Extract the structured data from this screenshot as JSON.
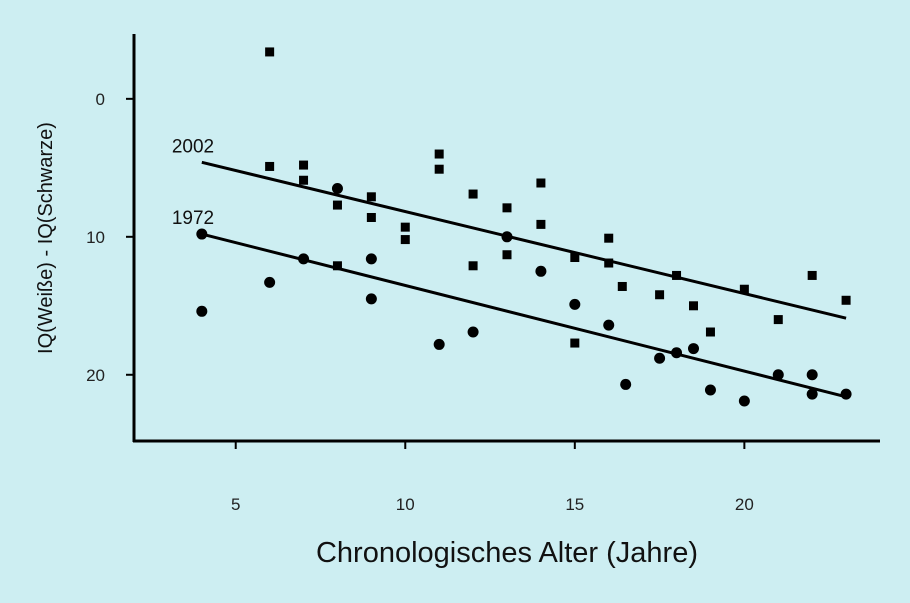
{
  "chart_data": {
    "type": "scatter",
    "background": "#cdeef2",
    "xlabel": "Chronologisches Alter (Jahre)",
    "ylabel": "IQ(Weiße) - IQ(Schwarze)",
    "xlim": [
      2,
      24
    ],
    "ylim": [
      -4.7,
      24.8
    ],
    "y_inverted": true,
    "x_ticks": [
      5,
      10,
      15,
      20
    ],
    "y_ticks": [
      0,
      10,
      20
    ],
    "grid": false,
    "series": [
      {
        "name": "2002",
        "marker": "square",
        "points": [
          [
            6,
            -3.4
          ],
          [
            6,
            4.9
          ],
          [
            7,
            4.8
          ],
          [
            7,
            5.9
          ],
          [
            8,
            7.7
          ],
          [
            8,
            12.1
          ],
          [
            9,
            7.1
          ],
          [
            9,
            8.6
          ],
          [
            10,
            9.3
          ],
          [
            10,
            10.2
          ],
          [
            11,
            4.0
          ],
          [
            11,
            5.1
          ],
          [
            12,
            6.9
          ],
          [
            12,
            12.1
          ],
          [
            13,
            7.9
          ],
          [
            13,
            11.3
          ],
          [
            14,
            6.1
          ],
          [
            14,
            9.1
          ],
          [
            15,
            11.5
          ],
          [
            15,
            17.7
          ],
          [
            16,
            10.1
          ],
          [
            16,
            11.9
          ],
          [
            16.4,
            13.6
          ],
          [
            17.5,
            14.2
          ],
          [
            18,
            12.8
          ],
          [
            18.5,
            15.0
          ],
          [
            19,
            16.9
          ],
          [
            20,
            13.8
          ],
          [
            21,
            16.0
          ],
          [
            22,
            12.8
          ],
          [
            23,
            14.6
          ]
        ],
        "trend": {
          "x": [
            4,
            23
          ],
          "y": [
            4.6,
            15.9
          ]
        }
      },
      {
        "name": "1972",
        "marker": "circle",
        "points": [
          [
            4,
            15.4
          ],
          [
            4,
            9.8
          ],
          [
            6,
            13.3
          ],
          [
            7,
            11.6
          ],
          [
            8,
            6.5
          ],
          [
            9,
            11.6
          ],
          [
            9,
            14.5
          ],
          [
            11,
            17.8
          ],
          [
            12,
            16.9
          ],
          [
            13,
            10.0
          ],
          [
            14,
            12.5
          ],
          [
            15,
            14.9
          ],
          [
            16,
            16.4
          ],
          [
            16.5,
            20.7
          ],
          [
            17.5,
            18.8
          ],
          [
            18,
            18.4
          ],
          [
            18.5,
            18.1
          ],
          [
            19,
            21.1
          ],
          [
            20,
            21.9
          ],
          [
            21,
            20.0
          ],
          [
            22,
            20.0
          ],
          [
            22,
            21.4
          ],
          [
            23,
            21.4
          ]
        ],
        "trend": {
          "x": [
            4,
            23
          ],
          "y": [
            9.8,
            21.6
          ]
        }
      }
    ]
  }
}
